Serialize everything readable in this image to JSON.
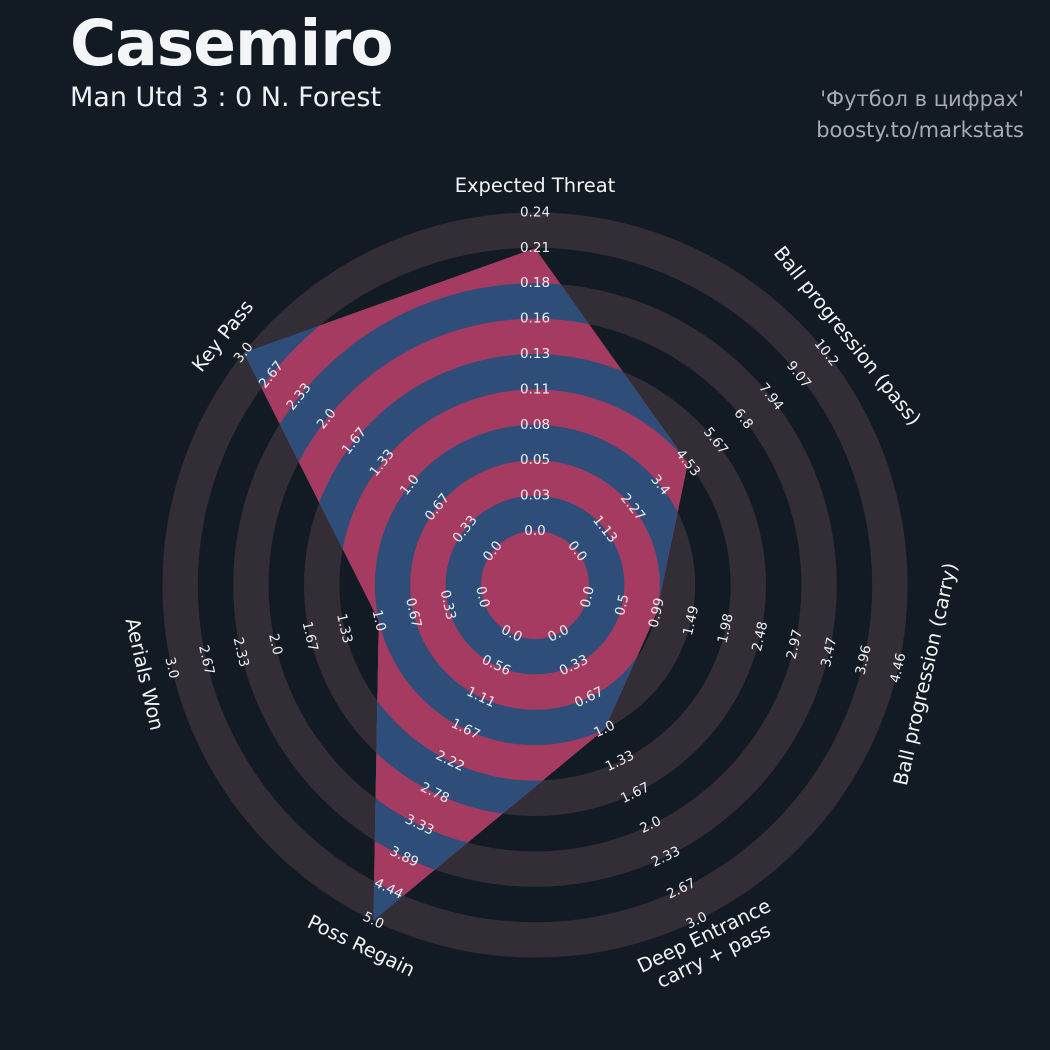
{
  "header": {
    "title": "Casemiro",
    "subtitle": "Man Utd 3 : 0 N. Forest",
    "watermark_line1": "'Футбол в цифрах'",
    "watermark_line2": "boosty.to/markstats"
  },
  "chart_data": {
    "type": "radar",
    "title": "Casemiro",
    "subtitle": "Man Utd 3 : 0 N. Forest",
    "legend": "none",
    "grid": "concentric-rings",
    "num_rings": 9,
    "axes": [
      {
        "label": "Expected Threat",
        "label_lines": [
          "Expected Threat"
        ],
        "ticks": [
          "0.0",
          "0.03",
          "0.05",
          "0.08",
          "0.11",
          "0.13",
          "0.16",
          "0.18",
          "0.21",
          "0.24"
        ],
        "min": 0.0,
        "max": 0.24,
        "value": 0.213
      },
      {
        "label": "Ball progression (pass)",
        "label_lines": [
          "Ball progression (pass)"
        ],
        "ticks": [
          "0.0",
          "1.13",
          "2.27",
          "3.4",
          "4.53",
          "5.67",
          "6.8",
          "7.94",
          "9.07",
          "10.2"
        ],
        "min": 0.0,
        "max": 10.2,
        "value": 4.53
      },
      {
        "label": "Ball progression (carry)",
        "label_lines": [
          "Ball progression (carry)"
        ],
        "ticks": [
          "0.0",
          "0.5",
          "0.99",
          "1.49",
          "1.98",
          "2.48",
          "2.97",
          "3.47",
          "3.96",
          "4.46"
        ],
        "min": 0.0,
        "max": 4.46,
        "value": 0.99
      },
      {
        "label": "Deep Entrance carry + pass",
        "label_lines": [
          "Deep Entrance",
          "carry + pass"
        ],
        "ticks": [
          "0.0",
          "0.33",
          "0.67",
          "1.0",
          "1.33",
          "1.67",
          "2.0",
          "2.33",
          "2.67",
          "3.0"
        ],
        "min": 0.0,
        "max": 3.0,
        "value": 1.0
      },
      {
        "label": "Poss Regain",
        "label_lines": [
          "Poss Regain"
        ],
        "ticks": [
          "0.0",
          "0.56",
          "1.11",
          "1.67",
          "2.22",
          "2.78",
          "3.33",
          "3.89",
          "4.44",
          "5.0"
        ],
        "min": 0.0,
        "max": 5.0,
        "value": 5.0
      },
      {
        "label": "Aerials Won",
        "label_lines": [
          "Aerials Won"
        ],
        "ticks": [
          "0.0",
          "0.33",
          "0.67",
          "1.0",
          "1.33",
          "1.67",
          "2.0",
          "2.33",
          "2.67",
          "3.0"
        ],
        "min": 0.0,
        "max": 3.0,
        "value": 1.0
      },
      {
        "label": "Key Pass",
        "label_lines": [
          "Key Pass"
        ],
        "ticks": [
          "0.0",
          "0.33",
          "0.67",
          "1.0",
          "1.33",
          "1.67",
          "2.0",
          "2.33",
          "2.67",
          "3.0"
        ],
        "min": 0.0,
        "max": 3.0,
        "value": 3.0
      }
    ],
    "colors": {
      "background": "#121a23",
      "ring_light": "#332d35",
      "radar_crimson": "#a53b61",
      "radar_blue": "#2e4e79",
      "tick_text": "#edeff1",
      "axis_label_text": "#f2f3f4"
    }
  }
}
